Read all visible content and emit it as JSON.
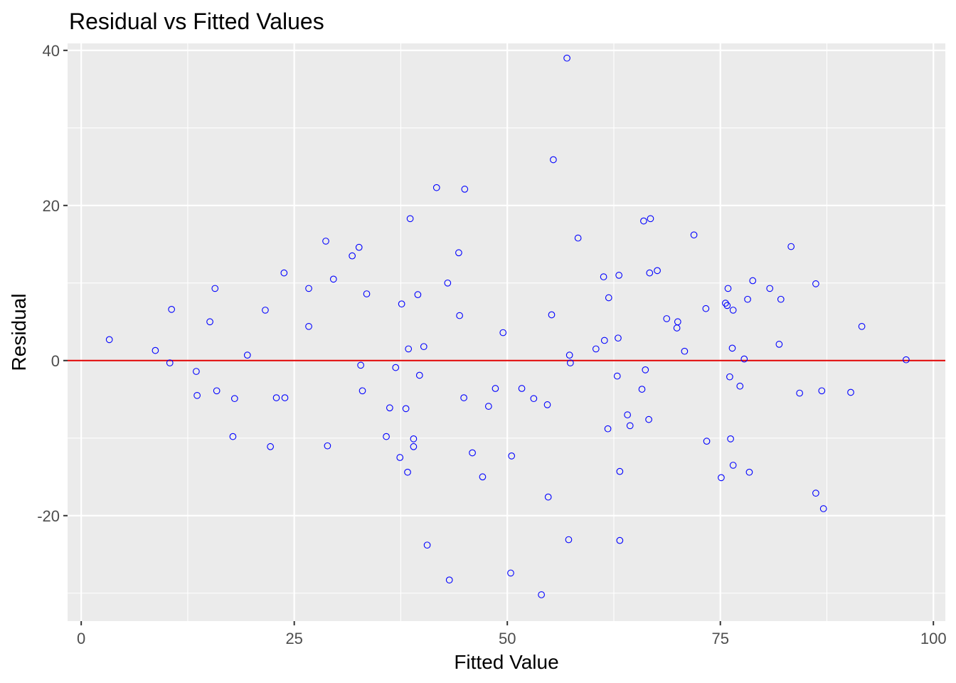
{
  "chart_data": {
    "type": "scatter",
    "title": "Residual vs Fitted Values",
    "xlabel": "Fitted Value",
    "ylabel": "Residual",
    "xlim": [
      -1.6,
      101.4
    ],
    "ylim": [
      -33.6,
      40.9
    ],
    "x_ticks": [
      0,
      25,
      50,
      75,
      100
    ],
    "x_tick_labels": [
      "0",
      "25",
      "50",
      "75",
      "100"
    ],
    "y_ticks": [
      -20,
      0,
      20,
      40
    ],
    "y_tick_labels": [
      "-20",
      "0",
      "20",
      "40"
    ],
    "x_minor": [
      12.5,
      37.5,
      62.5,
      87.5
    ],
    "y_minor": [
      -30,
      -10,
      10,
      30
    ],
    "grid": true,
    "reference_line": {
      "y": 0,
      "color": "#e00000"
    },
    "point_color": "#0000ff",
    "panel_color": "#ebebeb",
    "points": [
      [
        3.3,
        2.7
      ],
      [
        8.7,
        1.3
      ],
      [
        10.4,
        -0.3
      ],
      [
        10.6,
        6.6
      ],
      [
        13.5,
        -1.4
      ],
      [
        13.6,
        -4.5
      ],
      [
        15.1,
        5.0
      ],
      [
        15.7,
        9.3
      ],
      [
        15.9,
        -3.9
      ],
      [
        17.8,
        -9.8
      ],
      [
        18.0,
        -4.9
      ],
      [
        19.5,
        0.7
      ],
      [
        21.6,
        6.5
      ],
      [
        22.2,
        -11.1
      ],
      [
        22.9,
        -4.8
      ],
      [
        23.8,
        11.3
      ],
      [
        23.9,
        -4.8
      ],
      [
        26.7,
        9.3
      ],
      [
        26.7,
        4.4
      ],
      [
        28.7,
        15.4
      ],
      [
        28.9,
        -11.0
      ],
      [
        29.6,
        10.5
      ],
      [
        31.8,
        13.5
      ],
      [
        32.6,
        14.6
      ],
      [
        32.8,
        -0.6
      ],
      [
        33.0,
        -3.9
      ],
      [
        33.5,
        8.6
      ],
      [
        35.8,
        -9.8
      ],
      [
        36.2,
        -6.1
      ],
      [
        36.9,
        -0.9
      ],
      [
        37.4,
        -12.5
      ],
      [
        37.6,
        7.3
      ],
      [
        38.1,
        -6.2
      ],
      [
        38.3,
        -14.4
      ],
      [
        38.4,
        1.5
      ],
      [
        38.6,
        18.3
      ],
      [
        39.0,
        -10.1
      ],
      [
        39.0,
        -11.1
      ],
      [
        39.5,
        8.5
      ],
      [
        39.7,
        -1.9
      ],
      [
        40.2,
        1.8
      ],
      [
        40.6,
        -23.8
      ],
      [
        41.7,
        22.3
      ],
      [
        43.0,
        10.0
      ],
      [
        43.2,
        -28.3
      ],
      [
        44.3,
        13.9
      ],
      [
        44.4,
        5.8
      ],
      [
        44.9,
        -4.8
      ],
      [
        45.0,
        22.1
      ],
      [
        45.9,
        -11.9
      ],
      [
        47.1,
        -15.0
      ],
      [
        47.8,
        -5.9
      ],
      [
        48.6,
        -3.6
      ],
      [
        49.5,
        3.6
      ],
      [
        50.4,
        -27.4
      ],
      [
        50.5,
        -12.3
      ],
      [
        51.7,
        -3.6
      ],
      [
        53.1,
        -4.9
      ],
      [
        54.0,
        -30.2
      ],
      [
        54.7,
        -5.7
      ],
      [
        54.8,
        -17.6
      ],
      [
        55.2,
        5.9
      ],
      [
        55.4,
        25.9
      ],
      [
        57.0,
        39.0
      ],
      [
        57.2,
        -23.1
      ],
      [
        57.3,
        0.7
      ],
      [
        57.4,
        -0.3
      ],
      [
        58.3,
        15.8
      ],
      [
        60.4,
        1.5
      ],
      [
        61.3,
        10.8
      ],
      [
        61.4,
        2.6
      ],
      [
        61.8,
        -8.8
      ],
      [
        61.9,
        8.1
      ],
      [
        62.9,
        -2.0
      ],
      [
        63.0,
        2.9
      ],
      [
        63.1,
        11.0
      ],
      [
        63.2,
        -14.3
      ],
      [
        63.2,
        -23.2
      ],
      [
        64.1,
        -7.0
      ],
      [
        64.4,
        -8.4
      ],
      [
        65.8,
        -3.7
      ],
      [
        66.0,
        18.0
      ],
      [
        66.2,
        -1.2
      ],
      [
        66.6,
        -7.6
      ],
      [
        66.7,
        11.3
      ],
      [
        66.8,
        18.3
      ],
      [
        67.6,
        11.6
      ],
      [
        68.7,
        5.4
      ],
      [
        69.9,
        4.2
      ],
      [
        70.0,
        5.0
      ],
      [
        70.8,
        1.2
      ],
      [
        71.9,
        16.2
      ],
      [
        73.3,
        6.7
      ],
      [
        73.4,
        -10.4
      ],
      [
        75.1,
        -15.1
      ],
      [
        75.6,
        7.4
      ],
      [
        75.8,
        7.1
      ],
      [
        75.9,
        9.3
      ],
      [
        76.1,
        -2.1
      ],
      [
        76.2,
        -10.1
      ],
      [
        76.4,
        1.6
      ],
      [
        76.5,
        -13.5
      ],
      [
        76.5,
        6.5
      ],
      [
        77.3,
        -3.3
      ],
      [
        77.8,
        0.2
      ],
      [
        78.2,
        7.9
      ],
      [
        78.4,
        -14.4
      ],
      [
        78.8,
        10.3
      ],
      [
        80.8,
        9.3
      ],
      [
        81.9,
        2.1
      ],
      [
        82.1,
        7.9
      ],
      [
        83.3,
        14.7
      ],
      [
        84.3,
        -4.2
      ],
      [
        86.2,
        9.9
      ],
      [
        86.2,
        -17.1
      ],
      [
        86.9,
        -3.9
      ],
      [
        87.1,
        -19.1
      ],
      [
        90.3,
        -4.1
      ],
      [
        91.6,
        4.4
      ],
      [
        96.8,
        0.1
      ]
    ]
  }
}
